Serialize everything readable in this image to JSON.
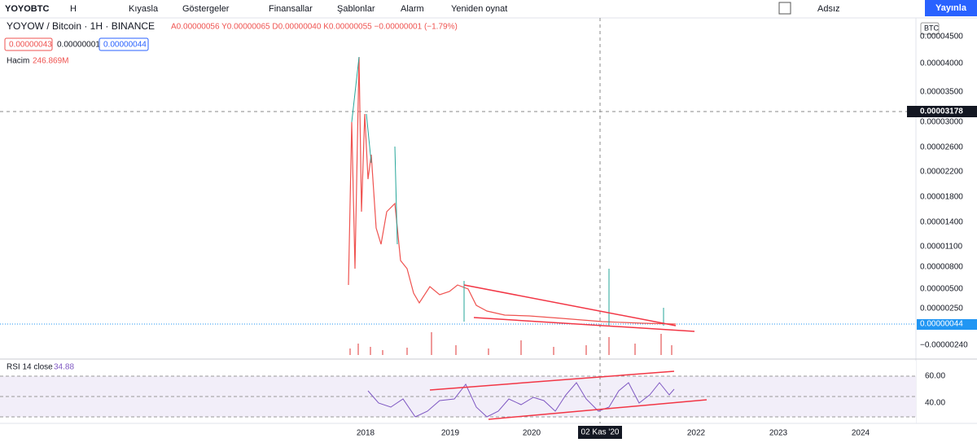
{
  "toolbar": {
    "symbol": "YOYOBTC",
    "interval": "H",
    "items": [
      "Kıyasla",
      "Göstergeler",
      "Finansallar",
      "Şablonlar",
      "Alarm",
      "Yeniden oynat"
    ],
    "layout_name": "Adsız",
    "publish": "Yayınla"
  },
  "legend": {
    "title": "YOYOW / Bitcoin · 1H · BINANCE",
    "ohlc": "A0.00000056 Y0.00000065 D0.00000040 K0.00000055 −0.00000001 (−1.79%)",
    "bid": "0.00000043",
    "spread": "0.00000001",
    "ask": "0.00000044",
    "volume_label": "Hacim",
    "volume_value": "246.869M"
  },
  "price_axis": {
    "currency": "BTC",
    "labels": [
      "0.00004500",
      "0.00004000",
      "0.00003500",
      "0.00003000",
      "0.00002600",
      "0.00002200",
      "0.00001800",
      "0.00001400",
      "0.00001100",
      "0.00000800",
      "0.00000500",
      "0.00000250",
      "−0.00000240"
    ],
    "last_price": "0.00000044",
    "crosshair_price": "0.00003178"
  },
  "rsi": {
    "label": "RSI 14 close",
    "value": "34.88",
    "labels": [
      "60.00",
      "40.00"
    ]
  },
  "time_axis": {
    "labels": [
      "2018",
      "2019",
      "2020",
      "2022",
      "2023",
      "2024"
    ],
    "crosshair_date": "02 Kas '20"
  }
}
